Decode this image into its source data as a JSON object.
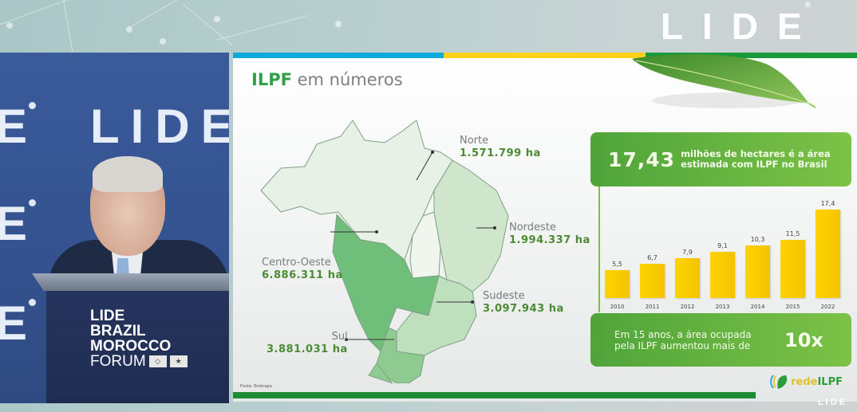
{
  "broadcast": {
    "logo": "LIDE",
    "logo_reg": "®",
    "corner_watermark": "LIDE"
  },
  "speaker_panel": {
    "background_text": [
      "E",
      "LIDE",
      "E",
      "E"
    ],
    "podium_sign": [
      "LIDE",
      "BRAZIL",
      "MOROCCO",
      "FORUM"
    ],
    "flags": [
      "brazil-flag",
      "morocco-flag"
    ]
  },
  "slide": {
    "title_highlight": "ILPF",
    "title_rest": "em  números",
    "source": "Fonte: Embrapa",
    "colors": {
      "blue": "#0fa9dd",
      "yellow": "#ffd21a",
      "green": "#1a9a3a",
      "box_green": "#5fb03f",
      "bar_yellow": "#ffd400",
      "value_green": "#4c8a33"
    },
    "regions": [
      {
        "name": "Norte",
        "value": "1.571.799 ha"
      },
      {
        "name": "Nordeste",
        "value": "1.994.337 ha"
      },
      {
        "name": "Centro-Oeste",
        "value": "6.886.311 ha"
      },
      {
        "name": "Sudeste",
        "value": "3.097.943 ha"
      },
      {
        "name": "Sul",
        "value": "3.881.031 ha"
      }
    ],
    "box_top": {
      "big": "17,43",
      "line1": "milhões de hectares é a área",
      "line2": "estimada com ILPF no Brasil"
    },
    "box_bottom": {
      "line1": "Em 15 anos, a área ocupada",
      "line2": "pela ILPF aumentou mais de",
      "big": "10x"
    },
    "footer_logo": {
      "prefix": "rede",
      "suffix": "ILPF"
    }
  },
  "chart_data": {
    "type": "bar",
    "title": "",
    "categories": [
      "2010",
      "2011",
      "2012",
      "2013",
      "2014",
      "2015",
      "2022"
    ],
    "values": [
      5.5,
      6.7,
      7.9,
      9.1,
      10.3,
      11.5,
      17.4
    ],
    "labels": [
      "5,5",
      "6,7",
      "7,9",
      "9,1",
      "10,3",
      "11,5",
      "17,4"
    ],
    "xlabel": "",
    "ylabel": "milhões de hectares",
    "ylim": [
      0,
      18
    ],
    "grid": false,
    "legend": null
  }
}
